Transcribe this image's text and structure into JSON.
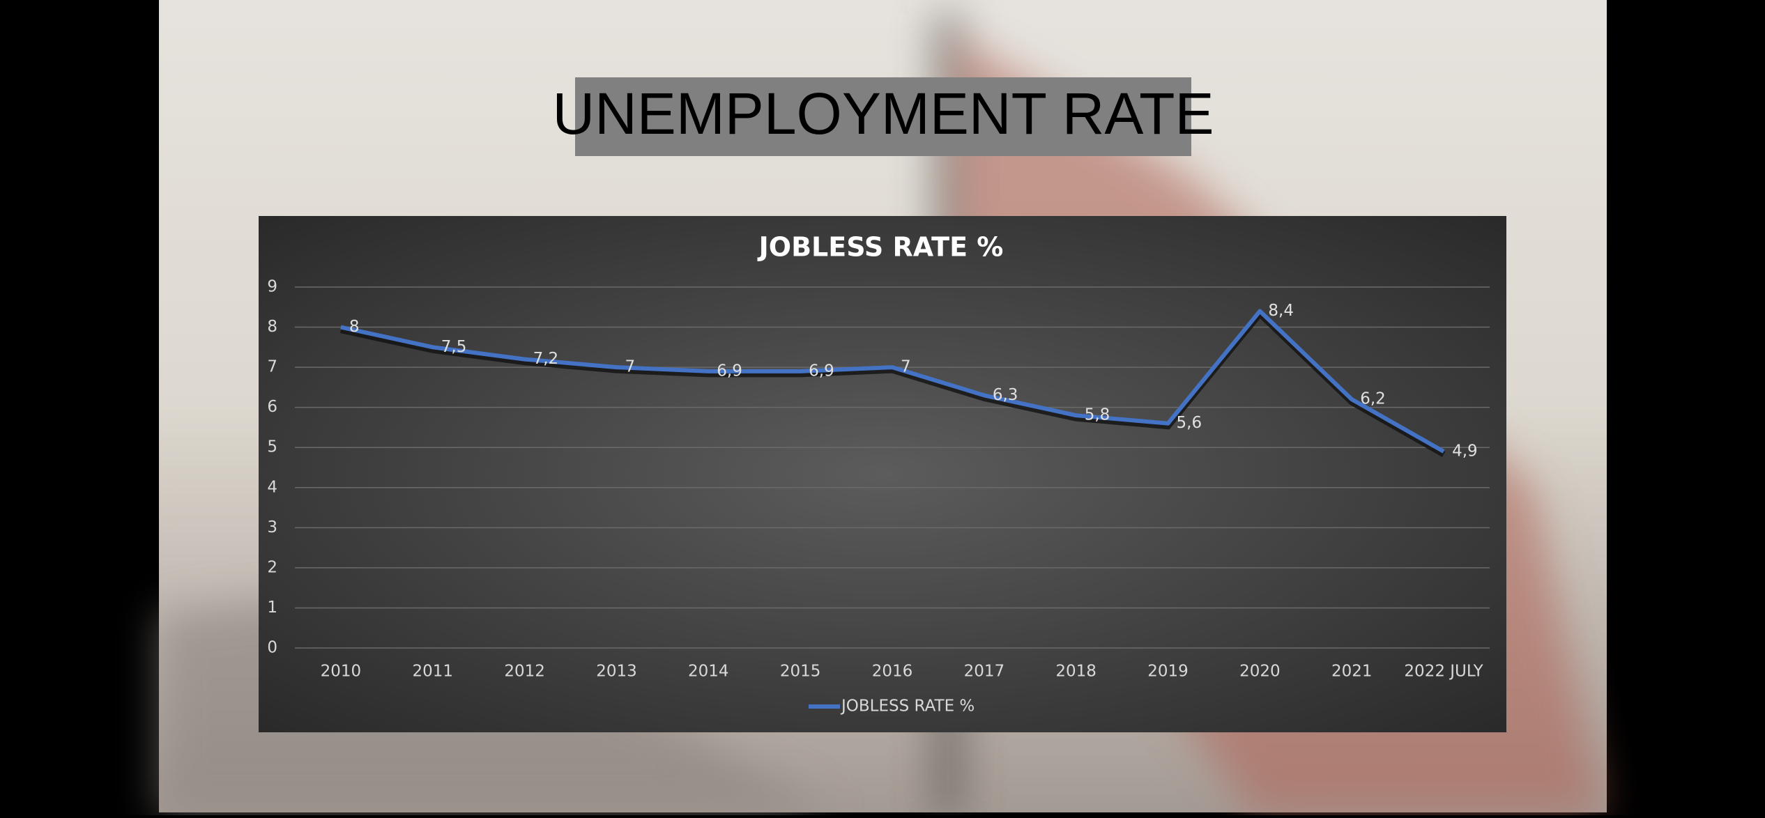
{
  "title": "UNEMPLOYMENT RATE",
  "chart_data": {
    "type": "line",
    "title": "JOBLESS RATE %",
    "categories": [
      "2010",
      "2011",
      "2012",
      "2013",
      "2014",
      "2015",
      "2016",
      "2017",
      "2018",
      "2019",
      "2020",
      "2021",
      "2022 JULY"
    ],
    "series": [
      {
        "name": "JOBLESS RATE %",
        "color": "#4472c4",
        "values": [
          8,
          7.5,
          7.2,
          7,
          6.9,
          6.9,
          7,
          6.3,
          5.8,
          5.6,
          8.4,
          6.2,
          4.9
        ],
        "value_labels": [
          "8",
          "7,5",
          "7,2",
          "7",
          "6,9",
          "6,9",
          "7",
          "6,3",
          "5,8",
          "5,6",
          "8,4",
          "6,2",
          "4,9"
        ]
      }
    ],
    "ylim": [
      0,
      9
    ],
    "yticks": [
      0,
      1,
      2,
      3,
      4,
      5,
      6,
      7,
      8,
      9
    ],
    "grid": true,
    "legend": "bottom"
  }
}
